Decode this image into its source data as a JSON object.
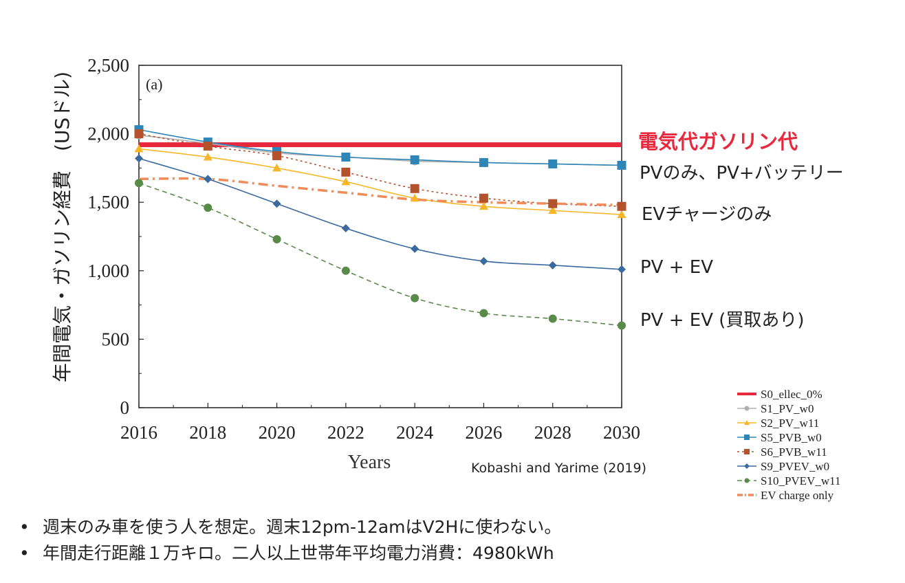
{
  "chart_data": {
    "type": "line",
    "panel_label": "(a)",
    "xlabel": "Years",
    "ylabel": "年間電気・ガソリン経費　(USドル)",
    "x": [
      2016,
      2018,
      2020,
      2022,
      2024,
      2026,
      2028,
      2030
    ],
    "xlim": [
      2016,
      2030
    ],
    "ylim": [
      0,
      2500
    ],
    "yticks": [
      0,
      500,
      1000,
      1500,
      2000,
      2500
    ],
    "ytick_labels": [
      "0",
      "500",
      "1,000",
      "1,500",
      "2,000",
      "2,500"
    ],
    "grid": false,
    "legend_position": "bottom-right",
    "series": [
      {
        "name": "S0_ellec_0%",
        "values": [
          1920,
          1920,
          1920,
          1920,
          1920,
          1920,
          1920,
          1920
        ],
        "color": "#e8283c",
        "marker": "none",
        "dash": "solid",
        "width": 7
      },
      {
        "name": "S1_PV_w0",
        "values": [
          1990,
          1930,
          1860,
          1830,
          1800,
          1790,
          1780,
          1770
        ],
        "color": "#b0b0b0",
        "marker": "circle",
        "dash": "solid",
        "width": 1.6
      },
      {
        "name": "S2_PV_w11",
        "values": [
          1890,
          1830,
          1750,
          1650,
          1530,
          1470,
          1440,
          1410
        ],
        "color": "#f5b728",
        "marker": "triangle",
        "dash": "solid",
        "width": 1.6
      },
      {
        "name": "S5_PVB_w0",
        "values": [
          2030,
          1940,
          1870,
          1830,
          1810,
          1790,
          1780,
          1770
        ],
        "color": "#2e86b8",
        "marker": "square",
        "dash": "solid",
        "width": 1.6
      },
      {
        "name": "S6_PVB_w11",
        "values": [
          2000,
          1910,
          1840,
          1720,
          1600,
          1530,
          1490,
          1470
        ],
        "color": "#b5522e",
        "marker": "square",
        "dash": "dot",
        "width": 1.6
      },
      {
        "name": "S9_PVEV_w0",
        "values": [
          1820,
          1670,
          1490,
          1310,
          1160,
          1070,
          1040,
          1010
        ],
        "color": "#3a6a9e",
        "marker": "diamond",
        "dash": "solid",
        "width": 1.6
      },
      {
        "name": "S10_PVEV_w11",
        "values": [
          1640,
          1460,
          1230,
          1000,
          800,
          690,
          650,
          600
        ],
        "color": "#5a8a4a",
        "marker": "circle",
        "dash": "dash",
        "width": 1.6
      },
      {
        "name": "EV charge only",
        "values": [
          1670,
          1670,
          1620,
          1570,
          1520,
          1500,
          1490,
          1480
        ],
        "color": "#f08b5a",
        "marker": "none",
        "dash": "dashdot",
        "width": 3.5
      }
    ],
    "annotations": [
      {
        "text": "電気代ガソリン代",
        "color": "#e8283c",
        "bold": true
      },
      {
        "text": "PVのみ、PV+バッテリー",
        "color": "#222222",
        "bold": false
      },
      {
        "text": "EVチャージのみ",
        "color": "#222222",
        "bold": false
      },
      {
        "text": "PV + EV",
        "color": "#222222",
        "bold": false
      },
      {
        "text": "PV + EV (買取あり)",
        "color": "#222222",
        "bold": false
      }
    ],
    "source": "Kobashi and Yarime (2019)"
  },
  "notes": [
    "週末のみ車を使う人を想定。週末12pm-12amはV2Hに使わない。",
    "年間走行距離１万キロ。二人以上世帯年平均電力消費：4980kWh"
  ]
}
